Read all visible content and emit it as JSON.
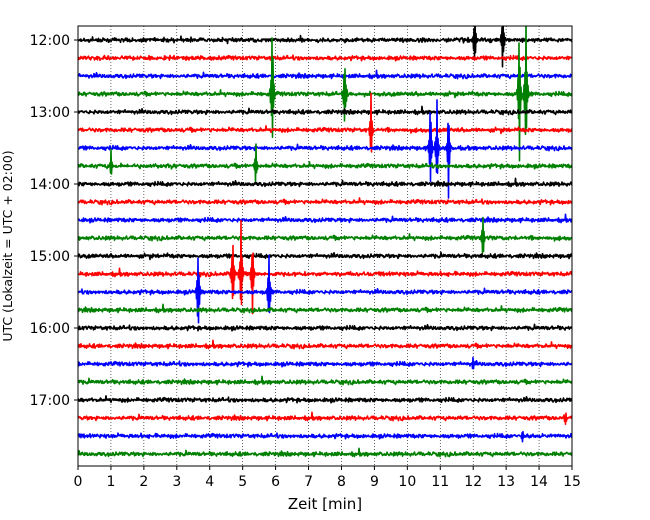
{
  "chart_data": {
    "type": "line",
    "title": "",
    "xlabel": "Zeit  [min]",
    "ylabel": "UTC (Lokalzeit = UTC + 02:00)",
    "xlim": [
      0,
      15
    ],
    "x_ticks": [
      "0",
      "1",
      "2",
      "3",
      "4",
      "5",
      "6",
      "7",
      "8",
      "9",
      "10",
      "11",
      "12",
      "13",
      "14",
      "15"
    ],
    "y_ticks": [
      "12:00",
      "13:00",
      "14:00",
      "15:00",
      "16:00",
      "17:00"
    ],
    "grid": "vertical dotted",
    "trace_interval_minutes": 15,
    "trace_start": "12:00",
    "trace_count": 24,
    "trace_colors": [
      "#000000",
      "#ff0000",
      "#0000ff",
      "#008000"
    ],
    "events": [
      {
        "trace": 0,
        "minute": 12.05,
        "amp": 1.0
      },
      {
        "trace": 0,
        "minute": 12.9,
        "amp": 1.0
      },
      {
        "trace": 3,
        "minute": 5.9,
        "amp": 2.0
      },
      {
        "trace": 3,
        "minute": 8.1,
        "amp": 1.2
      },
      {
        "trace": 3,
        "minute": 13.4,
        "amp": 2.0
      },
      {
        "trace": 3,
        "minute": 13.6,
        "amp": 2.2
      },
      {
        "trace": 5,
        "minute": 8.9,
        "amp": 1.0
      },
      {
        "trace": 6,
        "minute": 10.7,
        "amp": 1.4
      },
      {
        "trace": 6,
        "minute": 10.9,
        "amp": 1.2
      },
      {
        "trace": 6,
        "minute": 11.25,
        "amp": 1.3
      },
      {
        "trace": 7,
        "minute": 1.0,
        "amp": 0.4
      },
      {
        "trace": 7,
        "minute": 5.4,
        "amp": 0.6
      },
      {
        "trace": 11,
        "minute": 12.3,
        "amp": 0.6
      },
      {
        "trace": 13,
        "minute": 4.7,
        "amp": 1.3
      },
      {
        "trace": 13,
        "minute": 4.95,
        "amp": 1.4
      },
      {
        "trace": 13,
        "minute": 5.3,
        "amp": 1.2
      },
      {
        "trace": 14,
        "minute": 3.65,
        "amp": 1.5
      },
      {
        "trace": 14,
        "minute": 5.8,
        "amp": 1.2
      },
      {
        "trace": 18,
        "minute": 12.0,
        "amp": 0.2
      },
      {
        "trace": 21,
        "minute": 14.8,
        "amp": 0.2
      },
      {
        "trace": 22,
        "minute": 13.5,
        "amp": 0.2
      }
    ]
  }
}
